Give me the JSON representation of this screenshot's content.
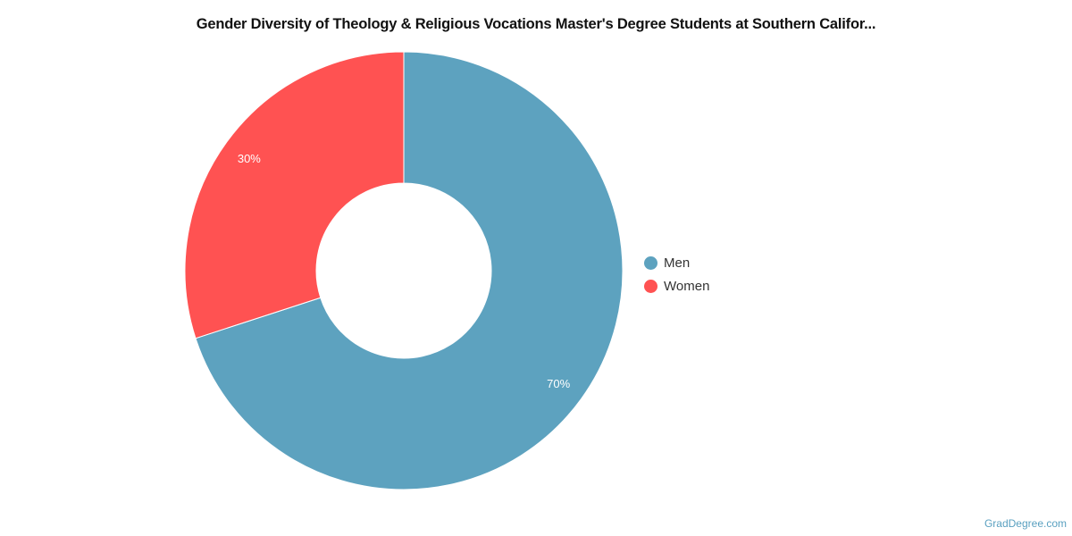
{
  "chart_data": {
    "type": "pie",
    "variant": "donut",
    "title": "Gender Diversity of Theology & Religious Vocations Master's Degree Students at Southern Califor...",
    "categories": [
      "Men",
      "Women"
    ],
    "values": [
      70,
      30
    ],
    "data_labels": [
      "70%",
      "30%"
    ],
    "colors": [
      "#5da2bf",
      "#ff5252"
    ],
    "legend_position": "right"
  },
  "credit": "GradDegree.com"
}
